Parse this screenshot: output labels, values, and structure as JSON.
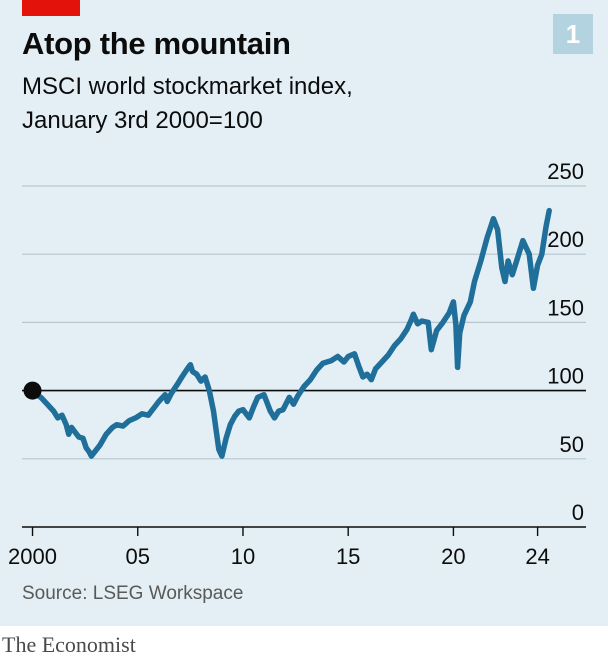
{
  "header": {
    "title": "Atop the mountain",
    "subtitle_line1": "MSCI world stockmarket index,",
    "subtitle_line2": "January 3rd 2000=100",
    "chart_number": "1"
  },
  "footer": {
    "source": "Source: LSEG Workspace",
    "brand": "The Economist"
  },
  "colors": {
    "panel_background": "#e3eff4",
    "accent_red": "#e3120b",
    "badge": "#b4d3e1",
    "line": "#1f6f9a",
    "gridline": "#b8c7cf",
    "baseline": "#0c0c0c"
  },
  "chart_data": {
    "type": "line",
    "title": "Atop the mountain",
    "ylim": [
      0,
      250
    ],
    "xlim": [
      1999.5,
      2026.3
    ],
    "yticks": [
      0,
      50,
      100,
      150,
      200,
      250
    ],
    "ytick_labels": [
      "0",
      "50",
      "100",
      "150",
      "200",
      "250"
    ],
    "xticks": [
      2000,
      2005,
      2010,
      2015,
      2020,
      2024
    ],
    "xtick_labels": [
      "2000",
      "05",
      "10",
      "15",
      "20",
      "24"
    ],
    "reference_line": 100,
    "start_marker": {
      "x": 2000.0,
      "y": 100
    },
    "grid": true,
    "y_axis_side": "right",
    "series": [
      {
        "x": [
          2000.0,
          2000.2,
          2000.4,
          2000.7,
          2001.0,
          2001.2,
          2001.4,
          2001.6,
          2001.72,
          2001.85,
          2002.0,
          2002.2,
          2002.4,
          2002.55,
          2002.7,
          2002.8,
          2003.0,
          2003.2,
          2003.5,
          2003.8,
          2004.0,
          2004.3,
          2004.6,
          2004.9,
          2005.2,
          2005.5,
          2005.8,
          2006.0,
          2006.3,
          2006.4,
          2006.6,
          2006.9,
          2007.1,
          2007.4,
          2007.5,
          2007.6,
          2007.8,
          2008.0,
          2008.2,
          2008.4,
          2008.6,
          2008.75,
          2008.85,
          2009.0,
          2009.2,
          2009.4,
          2009.6,
          2009.8,
          2010.0,
          2010.3,
          2010.5,
          2010.7,
          2011.0,
          2011.3,
          2011.5,
          2011.7,
          2011.9,
          2012.2,
          2012.4,
          2012.6,
          2012.9,
          2013.2,
          2013.5,
          2013.8,
          2014.2,
          2014.5,
          2014.8,
          2015.0,
          2015.3,
          2015.5,
          2015.7,
          2015.9,
          2016.1,
          2016.3,
          2016.6,
          2016.9,
          2017.2,
          2017.5,
          2017.8,
          2018.0,
          2018.1,
          2018.3,
          2018.5,
          2018.8,
          2018.95,
          2019.2,
          2019.5,
          2019.8,
          2020.0,
          2020.12,
          2020.2,
          2020.3,
          2020.5,
          2020.8,
          2021.0,
          2021.3,
          2021.6,
          2021.9,
          2022.1,
          2022.3,
          2022.45,
          2022.6,
          2022.8,
          2023.0,
          2023.3,
          2023.6,
          2023.8,
          2024.0,
          2024.2,
          2024.4,
          2024.55
        ],
        "values": [
          100,
          97,
          95,
          90,
          85,
          80,
          82,
          75,
          68,
          73,
          70,
          66,
          65,
          58,
          55,
          52,
          56,
          60,
          68,
          73,
          75,
          74,
          78,
          80,
          83,
          82,
          88,
          92,
          97,
          92,
          98,
          105,
          110,
          117,
          119,
          114,
          112,
          107,
          110,
          100,
          85,
          68,
          57,
          52,
          65,
          75,
          81,
          85,
          86,
          80,
          88,
          95,
          97,
          85,
          80,
          85,
          86,
          95,
          90,
          96,
          103,
          108,
          115,
          120,
          122,
          125,
          121,
          125,
          127,
          118,
          110,
          112,
          108,
          116,
          121,
          126,
          133,
          138,
          145,
          152,
          156,
          149,
          151,
          150,
          130,
          144,
          150,
          157,
          165,
          148,
          117,
          142,
          155,
          165,
          180,
          195,
          212,
          226,
          218,
          190,
          180,
          195,
          185,
          195,
          210,
          200,
          175,
          192,
          200,
          220,
          232
        ]
      }
    ]
  }
}
